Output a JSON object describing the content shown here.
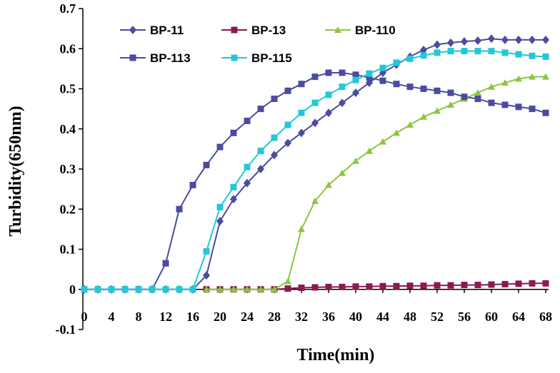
{
  "chart_data": {
    "type": "line",
    "title": "",
    "xlabel": "Time(min)",
    "ylabel": "Turbidity(650nm)",
    "xlim": [
      0,
      68
    ],
    "ylim": [
      -0.1,
      0.7
    ],
    "xticks": [
      0,
      4,
      8,
      12,
      16,
      20,
      24,
      28,
      32,
      36,
      40,
      44,
      48,
      52,
      56,
      60,
      64,
      68
    ],
    "yticks": [
      -0.1,
      0,
      0.1,
      0.2,
      0.3,
      0.4,
      0.5,
      0.6,
      0.7
    ],
    "grid": false,
    "legend_position": "top",
    "series": [
      {
        "name": "BP-11",
        "color": "#4B4BA0",
        "marker": "diamond",
        "x": [
          0,
          2,
          4,
          6,
          8,
          10,
          12,
          14,
          16,
          18,
          20,
          22,
          24,
          26,
          28,
          30,
          32,
          34,
          36,
          38,
          40,
          42,
          44,
          46,
          48,
          50,
          52,
          54,
          56,
          58,
          60,
          62,
          64,
          66,
          68
        ],
        "y": [
          0,
          0,
          0,
          0,
          0,
          0,
          0,
          0,
          0,
          0.035,
          0.17,
          0.225,
          0.265,
          0.3,
          0.335,
          0.365,
          0.39,
          0.415,
          0.44,
          0.465,
          0.49,
          0.515,
          0.54,
          0.56,
          0.58,
          0.597,
          0.61,
          0.615,
          0.618,
          0.62,
          0.625,
          0.622,
          0.622,
          0.622,
          0.622
        ]
      },
      {
        "name": "BP-13",
        "color": "#8B1A50",
        "marker": "square",
        "x": [
          18,
          20,
          22,
          24,
          26,
          28,
          30,
          32,
          34,
          36,
          38,
          40,
          42,
          44,
          46,
          48,
          50,
          52,
          54,
          56,
          58,
          60,
          62,
          64,
          66,
          68
        ],
        "y": [
          0,
          0,
          0,
          0,
          0,
          0,
          0.002,
          0.004,
          0.005,
          0.006,
          0.006,
          0.007,
          0.007,
          0.008,
          0.008,
          0.009,
          0.009,
          0.01,
          0.01,
          0.011,
          0.011,
          0.012,
          0.013,
          0.014,
          0.015,
          0.015
        ]
      },
      {
        "name": "BP-110",
        "color": "#8CC63F",
        "marker": "triangle",
        "x": [
          18,
          20,
          22,
          24,
          26,
          28,
          30,
          32,
          34,
          36,
          38,
          40,
          42,
          44,
          46,
          48,
          50,
          52,
          54,
          56,
          58,
          60,
          62,
          64,
          66,
          68
        ],
        "y": [
          0,
          0,
          0,
          0,
          0,
          0,
          0.02,
          0.15,
          0.22,
          0.26,
          0.29,
          0.32,
          0.345,
          0.368,
          0.39,
          0.41,
          0.43,
          0.445,
          0.46,
          0.475,
          0.49,
          0.505,
          0.515,
          0.525,
          0.53,
          0.53
        ]
      },
      {
        "name": "BP-113",
        "color": "#4B4BA0",
        "marker": "square",
        "x": [
          0,
          2,
          4,
          6,
          8,
          10,
          12,
          14,
          16,
          18,
          20,
          22,
          24,
          26,
          28,
          30,
          32,
          34,
          36,
          38,
          40,
          42,
          44,
          46,
          48,
          50,
          52,
          54,
          56,
          58,
          60,
          62,
          64,
          66,
          68
        ],
        "y": [
          0,
          0,
          0,
          0,
          0,
          0,
          0.065,
          0.2,
          0.26,
          0.31,
          0.355,
          0.39,
          0.42,
          0.45,
          0.475,
          0.495,
          0.512,
          0.53,
          0.54,
          0.54,
          0.535,
          0.528,
          0.52,
          0.512,
          0.505,
          0.5,
          0.495,
          0.49,
          0.48,
          0.475,
          0.465,
          0.46,
          0.455,
          0.45,
          0.44
        ]
      },
      {
        "name": "BP-115",
        "color": "#22C8D8",
        "marker": "square",
        "x": [
          0,
          2,
          4,
          6,
          8,
          10,
          12,
          14,
          16,
          18,
          20,
          22,
          24,
          26,
          28,
          30,
          32,
          34,
          36,
          38,
          40,
          42,
          44,
          46,
          48,
          50,
          52,
          54,
          56,
          58,
          60,
          62,
          64,
          66,
          68
        ],
        "y": [
          0,
          0,
          0,
          0,
          0,
          0,
          0,
          0,
          0,
          0.095,
          0.205,
          0.255,
          0.305,
          0.345,
          0.378,
          0.41,
          0.44,
          0.465,
          0.485,
          0.505,
          0.522,
          0.538,
          0.552,
          0.565,
          0.575,
          0.583,
          0.59,
          0.594,
          0.594,
          0.594,
          0.594,
          0.59,
          0.586,
          0.582,
          0.58
        ]
      }
    ]
  }
}
